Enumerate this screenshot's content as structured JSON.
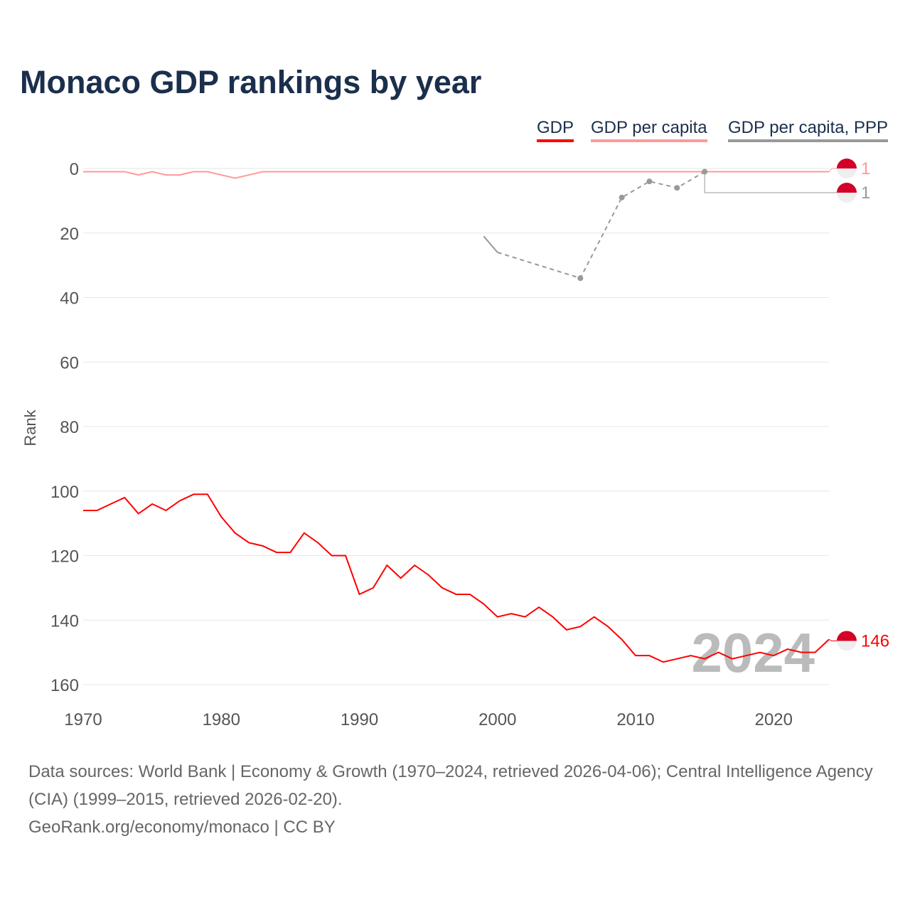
{
  "title": "Monaco GDP rankings by year",
  "chart_data": {
    "type": "line",
    "title": "Monaco GDP rankings by year",
    "xlabel": "",
    "ylabel": "Rank",
    "xlim": [
      1970,
      2024
    ],
    "ylim": [
      0,
      160
    ],
    "y_inverted": true,
    "x_ticks": [
      1970,
      1980,
      1990,
      2000,
      2010,
      2020
    ],
    "y_ticks": [
      0,
      20,
      40,
      60,
      80,
      100,
      120,
      140,
      160
    ],
    "grid": true,
    "legend_position": "top-right",
    "watermark_year": "2024",
    "series": [
      {
        "name": "GDP",
        "color": "#ff0000",
        "end_label": "146",
        "x": [
          1970,
          1971,
          1972,
          1973,
          1974,
          1975,
          1976,
          1977,
          1978,
          1979,
          1980,
          1981,
          1982,
          1983,
          1984,
          1985,
          1986,
          1987,
          1988,
          1989,
          1990,
          1991,
          1992,
          1993,
          1994,
          1995,
          1996,
          1997,
          1998,
          1999,
          2000,
          2001,
          2002,
          2003,
          2004,
          2005,
          2006,
          2007,
          2008,
          2009,
          2010,
          2011,
          2012,
          2013,
          2014,
          2015,
          2016,
          2017,
          2018,
          2019,
          2020,
          2021,
          2022,
          2023,
          2024
        ],
        "y": [
          106,
          106,
          104,
          102,
          107,
          104,
          106,
          103,
          101,
          101,
          108,
          113,
          116,
          117,
          119,
          119,
          113,
          116,
          120,
          120,
          132,
          130,
          123,
          127,
          123,
          126,
          130,
          132,
          132,
          135,
          139,
          138,
          139,
          136,
          139,
          143,
          142,
          139,
          142,
          146,
          151,
          151,
          153,
          152,
          151,
          152,
          150,
          152,
          151,
          150,
          151,
          149,
          150,
          150,
          146
        ]
      },
      {
        "name": "GDP per capita",
        "color": "#ff9999",
        "end_label": "1",
        "x": [
          1970,
          1971,
          1972,
          1973,
          1974,
          1975,
          1976,
          1977,
          1978,
          1979,
          1980,
          1981,
          1982,
          1983,
          1990,
          2000,
          2010,
          2020,
          2024
        ],
        "y": [
          1,
          1,
          1,
          1,
          2,
          1,
          2,
          2,
          1,
          1,
          2,
          3,
          2,
          1,
          1,
          1,
          1,
          1,
          1
        ]
      },
      {
        "name": "GDP per capita, PPP",
        "color": "#999999",
        "end_label": "1",
        "x": [
          1999,
          2000,
          2006,
          2009,
          2011,
          2013,
          2015
        ],
        "y": [
          21,
          26,
          34,
          9,
          4,
          6,
          1
        ]
      }
    ]
  },
  "footer": {
    "sources": "Data sources: World Bank | Economy & Growth (1970–2024, retrieved 2026-04-06); Central Intelligence Agency (CIA) (1999–2015, retrieved 2026-02-20).",
    "credit": "GeoRank.org/economy/monaco | CC BY"
  }
}
